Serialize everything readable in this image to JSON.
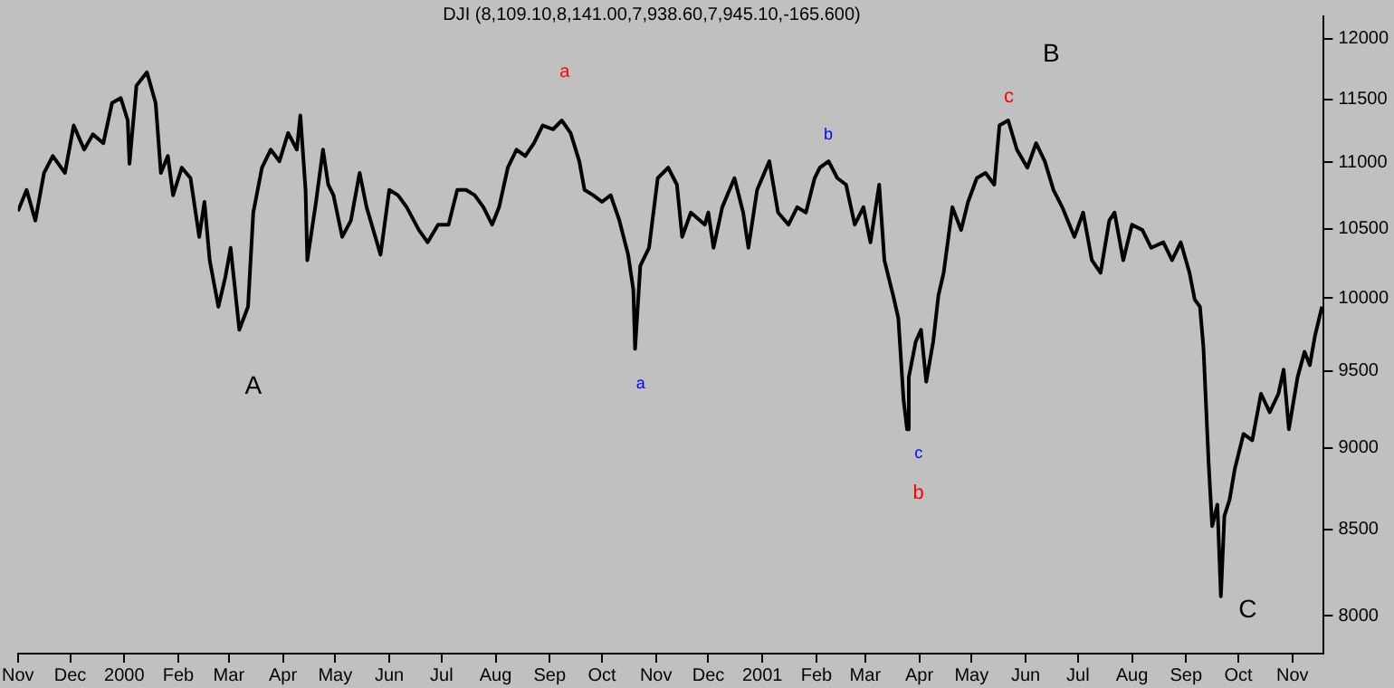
{
  "chart_data": {
    "type": "line",
    "title": "DJI (8,109.10,8,141.00,7,938.60,7,945.10,-165.600)",
    "x": [
      "1999-11-01",
      "1999-11-06",
      "1999-11-11",
      "1999-11-16",
      "1999-11-21",
      "1999-11-28",
      "1999-12-03",
      "1999-12-09",
      "1999-12-14",
      "1999-12-20",
      "1999-12-25",
      "1999-12-30",
      "2000-01-03",
      "2000-01-04",
      "2000-01-08",
      "2000-01-14",
      "2000-01-19",
      "2000-01-22",
      "2000-01-26",
      "2000-01-29",
      "2000-02-03",
      "2000-02-08",
      "2000-02-13",
      "2000-02-16",
      "2000-02-19",
      "2000-02-24",
      "2000-02-28",
      "2000-03-02",
      "2000-03-07",
      "2000-03-12",
      "2000-03-15",
      "2000-03-20",
      "2000-03-25",
      "2000-03-30",
      "2000-04-04",
      "2000-04-09",
      "2000-04-11",
      "2000-04-14",
      "2000-04-15",
      "2000-04-20",
      "2000-04-24",
      "2000-04-27",
      "2000-04-30",
      "2000-05-05",
      "2000-05-10",
      "2000-05-15",
      "2000-05-19",
      "2000-05-24",
      "2000-05-27",
      "2000-06-01",
      "2000-06-06",
      "2000-06-11",
      "2000-06-18",
      "2000-06-23",
      "2000-06-29",
      "2000-07-05",
      "2000-07-10",
      "2000-07-15",
      "2000-07-20",
      "2000-07-25",
      "2000-07-30",
      "2000-08-03",
      "2000-08-08",
      "2000-08-13",
      "2000-08-18",
      "2000-08-23",
      "2000-08-28",
      "2000-09-03",
      "2000-09-08",
      "2000-09-13",
      "2000-09-18",
      "2000-09-21",
      "2000-09-26",
      "2000-10-01",
      "2000-10-06",
      "2000-10-11",
      "2000-10-16",
      "2000-10-19",
      "2000-10-20",
      "2000-10-23",
      "2000-10-28",
      "2000-11-02",
      "2000-11-08",
      "2000-11-13",
      "2000-11-16",
      "2000-11-21",
      "2000-11-29",
      "2000-12-01",
      "2000-12-04",
      "2000-12-09",
      "2000-12-16",
      "2000-12-21",
      "2000-12-24",
      "2000-12-29",
      "2001-01-05",
      "2001-01-10",
      "2001-01-16",
      "2001-01-21",
      "2001-01-26",
      "2001-01-31",
      "2001-02-03",
      "2001-02-08",
      "2001-02-13",
      "2001-02-18",
      "2001-02-23",
      "2001-02-28",
      "2001-03-04",
      "2001-03-09",
      "2001-03-12",
      "2001-03-17",
      "2001-03-20",
      "2001-03-23",
      "2001-03-25",
      "2001-03-26",
      "2001-03-30",
      "2001-04-02",
      "2001-04-05",
      "2001-04-09",
      "2001-04-12",
      "2001-04-15",
      "2001-04-20",
      "2001-04-25",
      "2001-04-29",
      "2001-05-04",
      "2001-05-09",
      "2001-05-14",
      "2001-05-17",
      "2001-05-22",
      "2001-05-27",
      "2001-06-02",
      "2001-06-07",
      "2001-06-12",
      "2001-06-17",
      "2001-06-22",
      "2001-06-29",
      "2001-07-04",
      "2001-07-09",
      "2001-07-14",
      "2001-07-19",
      "2001-07-22",
      "2001-07-27",
      "2001-08-01",
      "2001-08-07",
      "2001-08-12",
      "2001-08-19",
      "2001-08-24",
      "2001-08-29",
      "2001-09-03",
      "2001-09-06",
      "2001-09-09",
      "2001-09-11",
      "2001-09-14",
      "2001-09-16",
      "2001-09-19",
      "2001-09-21",
      "2001-09-23",
      "2001-09-26",
      "2001-09-29",
      "2001-10-04",
      "2001-10-09",
      "2001-10-14",
      "2001-10-19",
      "2001-10-24",
      "2001-10-27",
      "2001-10-30",
      "2001-11-04",
      "2001-11-08",
      "2001-11-11",
      "2001-11-14",
      "2001-11-18"
    ],
    "series": [
      {
        "color": "#000000",
        "values": [
          10630,
          10790,
          10560,
          10920,
          11050,
          10920,
          11290,
          11100,
          11220,
          11150,
          11470,
          11510,
          11330,
          10990,
          11610,
          11720,
          11470,
          10920,
          11050,
          10750,
          10960,
          10880,
          10440,
          10700,
          10270,
          9940,
          10150,
          10360,
          9780,
          9940,
          10620,
          10960,
          11100,
          11010,
          11230,
          11100,
          11370,
          10790,
          10270,
          10700,
          11100,
          10830,
          10750,
          10440,
          10560,
          10920,
          10660,
          10440,
          10310,
          10790,
          10750,
          10660,
          10490,
          10400,
          10530,
          10530,
          10790,
          10790,
          10750,
          10660,
          10530,
          10660,
          10960,
          11100,
          11050,
          11150,
          11290,
          11260,
          11330,
          11230,
          11010,
          10790,
          10750,
          10700,
          10750,
          10560,
          10310,
          10060,
          9650,
          10230,
          10360,
          10880,
          10960,
          10830,
          10440,
          10620,
          10530,
          10620,
          10360,
          10660,
          10880,
          10620,
          10360,
          10790,
          11010,
          10620,
          10530,
          10660,
          10620,
          10880,
          10960,
          11010,
          10880,
          10830,
          10530,
          10660,
          10400,
          10830,
          10270,
          10020,
          9860,
          9310,
          9120,
          9460,
          9700,
          9780,
          9430,
          9700,
          10020,
          10180,
          10660,
          10490,
          10700,
          10880,
          10920,
          10830,
          11290,
          11330,
          11100,
          10960,
          11150,
          11010,
          10790,
          10660,
          10440,
          10620,
          10270,
          10180,
          10560,
          10620,
          10270,
          10530,
          10490,
          10360,
          10400,
          10270,
          10400,
          10180,
          9990,
          9940,
          9660,
          8900,
          8520,
          8650,
          8110,
          8580,
          8680,
          8870,
          9090,
          9050,
          9350,
          9230,
          9350,
          9510,
          9120,
          9460,
          9630,
          9540,
          9740,
          9940
        ]
      }
    ],
    "xlim": [
      "1999-11-01",
      "2001-11-19"
    ],
    "xticks": [
      {
        "value": "1999-11-01",
        "label": "Nov"
      },
      {
        "value": "1999-12-01",
        "label": "Dec"
      },
      {
        "value": "2000-01-01",
        "label": "2000"
      },
      {
        "value": "2000-02-01",
        "label": "Feb"
      },
      {
        "value": "2000-03-01",
        "label": "Mar"
      },
      {
        "value": "2000-04-01",
        "label": "Apr"
      },
      {
        "value": "2000-05-01",
        "label": "May"
      },
      {
        "value": "2000-06-01",
        "label": "Jun"
      },
      {
        "value": "2000-07-01",
        "label": "Jul"
      },
      {
        "value": "2000-08-01",
        "label": "Aug"
      },
      {
        "value": "2000-09-01",
        "label": "Sep"
      },
      {
        "value": "2000-10-01",
        "label": "Oct"
      },
      {
        "value": "2000-11-01",
        "label": "Nov"
      },
      {
        "value": "2000-12-01",
        "label": "Dec"
      },
      {
        "value": "2001-01-01",
        "label": "2001"
      },
      {
        "value": "2001-02-01",
        "label": "Feb"
      },
      {
        "value": "2001-03-01",
        "label": "Mar"
      },
      {
        "value": "2001-04-01",
        "label": "Apr"
      },
      {
        "value": "2001-05-01",
        "label": "May"
      },
      {
        "value": "2001-06-01",
        "label": "Jun"
      },
      {
        "value": "2001-07-01",
        "label": "Jul"
      },
      {
        "value": "2001-08-01",
        "label": "Aug"
      },
      {
        "value": "2001-09-01",
        "label": "Sep"
      },
      {
        "value": "2001-10-01",
        "label": "Oct"
      },
      {
        "value": "2001-11-01",
        "label": "Nov"
      }
    ],
    "ylim": [
      7790,
      12190
    ],
    "yticks": [
      8000,
      8500,
      9000,
      9500,
      10000,
      10500,
      11000,
      11500,
      12000
    ],
    "log": true,
    "grid": false,
    "legend": false,
    "marker": "none",
    "line_style": "solid",
    "annotations": [
      "A",
      "a",
      "a",
      "b",
      "c",
      "b",
      "c",
      "B",
      "C"
    ]
  }
}
